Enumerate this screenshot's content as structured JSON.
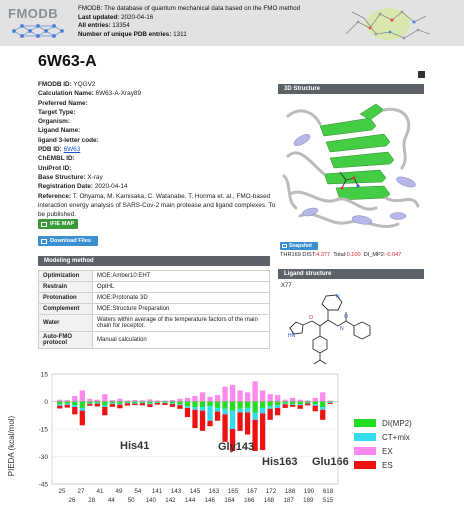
{
  "header": {
    "logo": "FMODB",
    "desc": "FMODB: The database of quantum mechanical data based on the FMO method",
    "last_updated_label": "Last updated:",
    "last_updated": "2020-04-16",
    "all_entries_label": "All entries:",
    "all_entries": "13354",
    "unique_pdb_label": "Number of unique PDB entries:",
    "unique_pdb": "1311"
  },
  "title": "6W63-A",
  "info": [
    {
      "k": "FMODB ID:",
      "v": "YQGV2"
    },
    {
      "k": "Calculation Name:",
      "v": "6W63-A-Xray89"
    },
    {
      "k": "Preferred Name:",
      "v": ""
    },
    {
      "k": "Target Type:",
      "v": ""
    },
    {
      "k": "Organism:",
      "v": ""
    },
    {
      "k": "Ligand Name:",
      "v": ""
    },
    {
      "k": "ligand 3-letter code:",
      "v": ""
    },
    {
      "k": "PDB ID:",
      "v": "6W63",
      "link": true
    },
    {
      "k": "ChEMBL ID:",
      "v": ""
    },
    {
      "k": "UniProt ID:",
      "v": ""
    },
    {
      "k": "Base Structure:",
      "v": "X-ray"
    },
    {
      "k": "Registration Date:",
      "v": "2020-04-14"
    }
  ],
  "reference_label": "Reference:",
  "reference": "T. Ohyama, M. Kamisaka, C. Watanabe, T. Honma et. al., FMO-based interaction energy analysis of SARS-Cov-2 main protease and ligand complexes. To be published.",
  "buttons": {
    "ifie": "IFIE MAP",
    "download": "Download Files",
    "snapshot": "Snapshot"
  },
  "sections": {
    "structure": "3D Structure",
    "modeling": "Modeling method",
    "ligand": "Ligand structure"
  },
  "interaction": {
    "residue": "THR169",
    "dist_label": "DIST:",
    "dist": "4.377",
    "total_label": "Total:",
    "total": "0.100",
    "di_label": "DI_MP2:",
    "di": "-0.047"
  },
  "modeling": [
    {
      "k": "Optimization",
      "v": "MOE:Amber10:EHT"
    },
    {
      "k": "Restrain",
      "v": "OptHL"
    },
    {
      "k": "Protonation",
      "v": "MOE:Protonate 3D"
    },
    {
      "k": "Complement",
      "v": "MOE:Structure Preparation"
    },
    {
      "k": "Water",
      "v": "Waters within average of the temperature factors of the main chain for receptor."
    },
    {
      "k": "Auto-FMO protocol",
      "v": "Manual calculation"
    }
  ],
  "ligand_code": "X77",
  "colors": {
    "di": "#22dd22",
    "ct": "#33ddee",
    "ex": "#ff88ee",
    "es": "#ee1111"
  },
  "chart_data": {
    "type": "bar",
    "stacked": true,
    "ylabel": "PIEDA (kcal/mol)",
    "ylim": [
      -45,
      15
    ],
    "yticks": [
      15,
      0,
      -15,
      -30,
      -45
    ],
    "x_top": [
      "25",
      "27",
      "41",
      "49",
      "54",
      "141",
      "143",
      "145",
      "163",
      "165",
      "167",
      "172",
      "188",
      "190",
      "618"
    ],
    "x_bottom": [
      "26",
      "28",
      "44",
      "50",
      "140",
      "142",
      "144",
      "146",
      "164",
      "166",
      "168",
      "187",
      "189",
      "515"
    ],
    "legend": [
      "DI(MP2)",
      "CT+mix",
      "EX",
      "ES"
    ],
    "legend_position": "right",
    "annotations": [
      "His41",
      "Gly143",
      "His163",
      "Glu166"
    ],
    "bars": [
      {
        "ex": 1.0,
        "es": -1.5,
        "ct": -0.8,
        "di": -1.5
      },
      {
        "ex": 0.8,
        "es": -1.5,
        "ct": -0.6,
        "di": -1.2
      },
      {
        "ex": 3.0,
        "es": -4.0,
        "ct": -1.0,
        "di": -2.0
      },
      {
        "ex": 6.0,
        "es": -8.0,
        "ct": -1.5,
        "di": -3.5
      },
      {
        "ex": 1.5,
        "es": -1.0,
        "ct": -0.3,
        "di": -1.0
      },
      {
        "ex": 1.0,
        "es": -1.5,
        "ct": -0.4,
        "di": -0.8
      },
      {
        "ex": 4.0,
        "es": -4.5,
        "ct": -0.8,
        "di": -2.2
      },
      {
        "ex": 0.8,
        "es": -1.5,
        "ct": -0.4,
        "di": -1.0
      },
      {
        "ex": 1.5,
        "es": -2.0,
        "ct": -0.5,
        "di": -1.2
      },
      {
        "ex": 0.5,
        "es": -1.2,
        "ct": -0.3,
        "di": -0.7
      },
      {
        "ex": 0.8,
        "es": -0.8,
        "ct": -0.4,
        "di": -0.8
      },
      {
        "ex": 0.6,
        "es": -1.2,
        "ct": -0.3,
        "di": -0.6
      },
      {
        "ex": 1.2,
        "es": -1.5,
        "ct": -0.5,
        "di": -1.0
      },
      {
        "ex": 0.6,
        "es": -0.9,
        "ct": -0.3,
        "di": -0.5
      },
      {
        "ex": 0.5,
        "es": -1.0,
        "ct": -0.3,
        "di": -0.6
      },
      {
        "ex": 0.8,
        "es": -1.5,
        "ct": -0.4,
        "di": -1.0
      },
      {
        "ex": 1.5,
        "es": -2.0,
        "ct": -0.5,
        "di": -1.5
      },
      {
        "ex": 2.0,
        "es": -5.0,
        "ct": -1.0,
        "di": -2.5
      },
      {
        "ex": 3.0,
        "es": -10.0,
        "ct": -1.5,
        "di": -3.0
      },
      {
        "ex": 5.0,
        "es": -11.0,
        "ct": -2.0,
        "di": -3.0
      },
      {
        "ex": 2.5,
        "es": -3.0,
        "ct": -8.0,
        "di": -2.5
      },
      {
        "ex": 3.5,
        "es": -5.0,
        "ct": -2.0,
        "di": -3.5
      },
      {
        "ex": 8.0,
        "es": -15.0,
        "ct": -3.0,
        "di": -4.0
      },
      {
        "ex": 9.0,
        "es": -12.0,
        "ct": -10.0,
        "di": -5.0
      },
      {
        "ex": 6.0,
        "es": -10.0,
        "ct": -2.0,
        "di": -4.0
      },
      {
        "ex": 5.0,
        "es": -12.0,
        "ct": -2.5,
        "di": -3.5
      },
      {
        "ex": 11.0,
        "es": -17.0,
        "ct": -4.0,
        "di": -6.0
      },
      {
        "ex": 6.0,
        "es": -20.0,
        "ct": -3.0,
        "di": -3.5
      },
      {
        "ex": 4.0,
        "es": -6.0,
        "ct": -1.5,
        "di": -2.5
      },
      {
        "ex": 3.5,
        "es": -4.0,
        "ct": -1.5,
        "di": -2.0
      },
      {
        "ex": 1.0,
        "es": -2.0,
        "ct": -0.5,
        "di": -1.0
      },
      {
        "ex": 2.0,
        "es": -1.0,
        "ct": -0.4,
        "di": -1.5
      },
      {
        "ex": 1.0,
        "es": -2.0,
        "ct": -0.5,
        "di": -1.5
      },
      {
        "ex": 0.6,
        "es": -1.0,
        "ct": -0.3,
        "di": -0.8
      },
      {
        "ex": 2.0,
        "es": -3.0,
        "ct": -0.8,
        "di": -1.5
      },
      {
        "ex": 5.0,
        "es": -5.5,
        "ct": -1.5,
        "di": -3.0
      },
      {
        "ex": 0.5,
        "es": -0.5,
        "ct": -0.3,
        "di": -0.6
      }
    ]
  }
}
